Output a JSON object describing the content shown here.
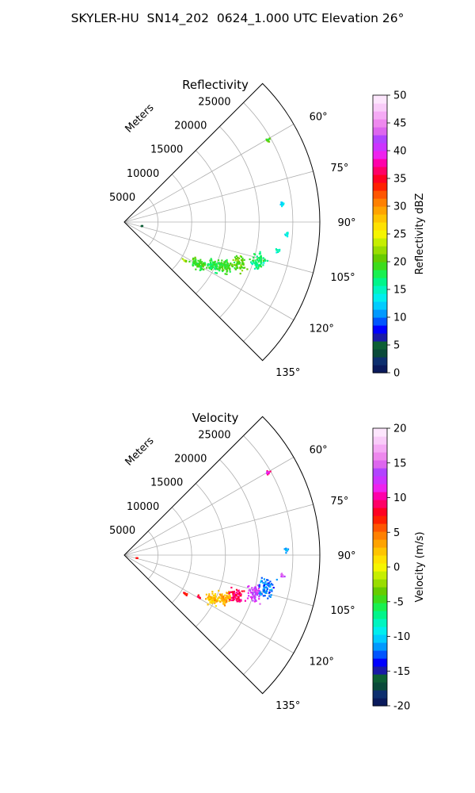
{
  "suptitle": "SKYLER-HU  SN14_202  0624_1.000 UTC Elevation 26°",
  "chart_data": [
    {
      "type": "polar-sector",
      "title": "Reflectivity",
      "radial_label": "Meters",
      "r_max": 29000,
      "theta_range_deg": [
        45,
        135
      ],
      "r_ticks": [
        5000,
        10000,
        15000,
        20000,
        25000
      ],
      "theta_ticks_deg": [
        60,
        75,
        90,
        105,
        120,
        135
      ],
      "grid": true,
      "colorbar": {
        "label": "Reflectivity dBZ",
        "range": [
          0,
          50
        ],
        "ticks": [
          0,
          5,
          10,
          15,
          20,
          25,
          30,
          35,
          40,
          45,
          50
        ],
        "colors": [
          "#0a1a5c",
          "#0d2f6e",
          "#0a4a3a",
          "#0d5f35",
          "#1a1aa6",
          "#0000ff",
          "#0055ff",
          "#0099ff",
          "#00ccff",
          "#00eeee",
          "#00f5c0",
          "#00f58a",
          "#19f050",
          "#3ddc1c",
          "#66cc00",
          "#99dd00",
          "#c6ee00",
          "#f5f500",
          "#ffe100",
          "#ffc400",
          "#ffa300",
          "#ff8000",
          "#ff5500",
          "#ff2000",
          "#ff0022",
          "#ff0066",
          "#ff00aa",
          "#ee22ee",
          "#cc33ff",
          "#b144ff",
          "#dd66ee",
          "#ee88ee",
          "#f5aaf5",
          "#f9ccf9",
          "#fde6fd"
        ]
      },
      "echoes": [
        {
          "az": 113,
          "r": 16000,
          "value": 19
        },
        {
          "az": 110,
          "r": 18000,
          "value": 20
        },
        {
          "az": 116,
          "r": 14500,
          "value": 18
        },
        {
          "az": 106,
          "r": 20500,
          "value": 17
        },
        {
          "az": 119,
          "r": 12500,
          "value": 19
        },
        {
          "az": 100,
          "r": 23000,
          "value": 15
        },
        {
          "az": 94,
          "r": 24000,
          "value": 14
        },
        {
          "az": 83,
          "r": 23500,
          "value": 13
        },
        {
          "az": 60,
          "r": 24500,
          "value": 20
        },
        {
          "az": 122,
          "r": 10500,
          "value": 22
        },
        {
          "az": 101,
          "r": 2500,
          "value": 4
        }
      ]
    },
    {
      "type": "polar-sector",
      "title": "Velocity",
      "radial_label": "Meters",
      "r_max": 29000,
      "theta_range_deg": [
        45,
        135
      ],
      "r_ticks": [
        5000,
        10000,
        15000,
        20000,
        25000
      ],
      "theta_ticks_deg": [
        60,
        75,
        90,
        105,
        120,
        135
      ],
      "grid": true,
      "colorbar": {
        "label": "Velocity (m/s)",
        "range": [
          -20,
          20
        ],
        "ticks": [
          -20,
          -15,
          -10,
          -5,
          0,
          5,
          10,
          15,
          20
        ],
        "colors": [
          "#0a1a5c",
          "#0d2f6e",
          "#0a4a3a",
          "#0d5f35",
          "#1a1aa6",
          "#0000ff",
          "#0055ff",
          "#0099ff",
          "#00ccff",
          "#00eeee",
          "#00f5c0",
          "#00f58a",
          "#19f050",
          "#3ddc1c",
          "#66cc00",
          "#99dd00",
          "#c6ee00",
          "#f5f500",
          "#ffe100",
          "#ffc400",
          "#ffa300",
          "#ff8000",
          "#ff5500",
          "#ff2000",
          "#ff0022",
          "#ff0066",
          "#ff00aa",
          "#ee22ee",
          "#cc33ff",
          "#b144ff",
          "#dd66ee",
          "#ee88ee",
          "#f5aaf5",
          "#f9ccf9",
          "#fde6fd"
        ]
      },
      "echoes": [
        {
          "az": 116,
          "r": 14500,
          "value": 2
        },
        {
          "az": 113,
          "r": 16000,
          "value": 3
        },
        {
          "az": 110,
          "r": 17500,
          "value": 9
        },
        {
          "az": 106,
          "r": 20000,
          "value": 13
        },
        {
          "az": 103,
          "r": 21500,
          "value": -12
        },
        {
          "az": 119,
          "r": 12500,
          "value": 8
        },
        {
          "az": 122,
          "r": 10500,
          "value": 7
        },
        {
          "az": 97,
          "r": 23500,
          "value": 14
        },
        {
          "az": 88,
          "r": 24000,
          "value": -11
        },
        {
          "az": 60,
          "r": 24500,
          "value": 11
        },
        {
          "az": 100,
          "r": 1800,
          "value": 6
        }
      ]
    }
  ]
}
